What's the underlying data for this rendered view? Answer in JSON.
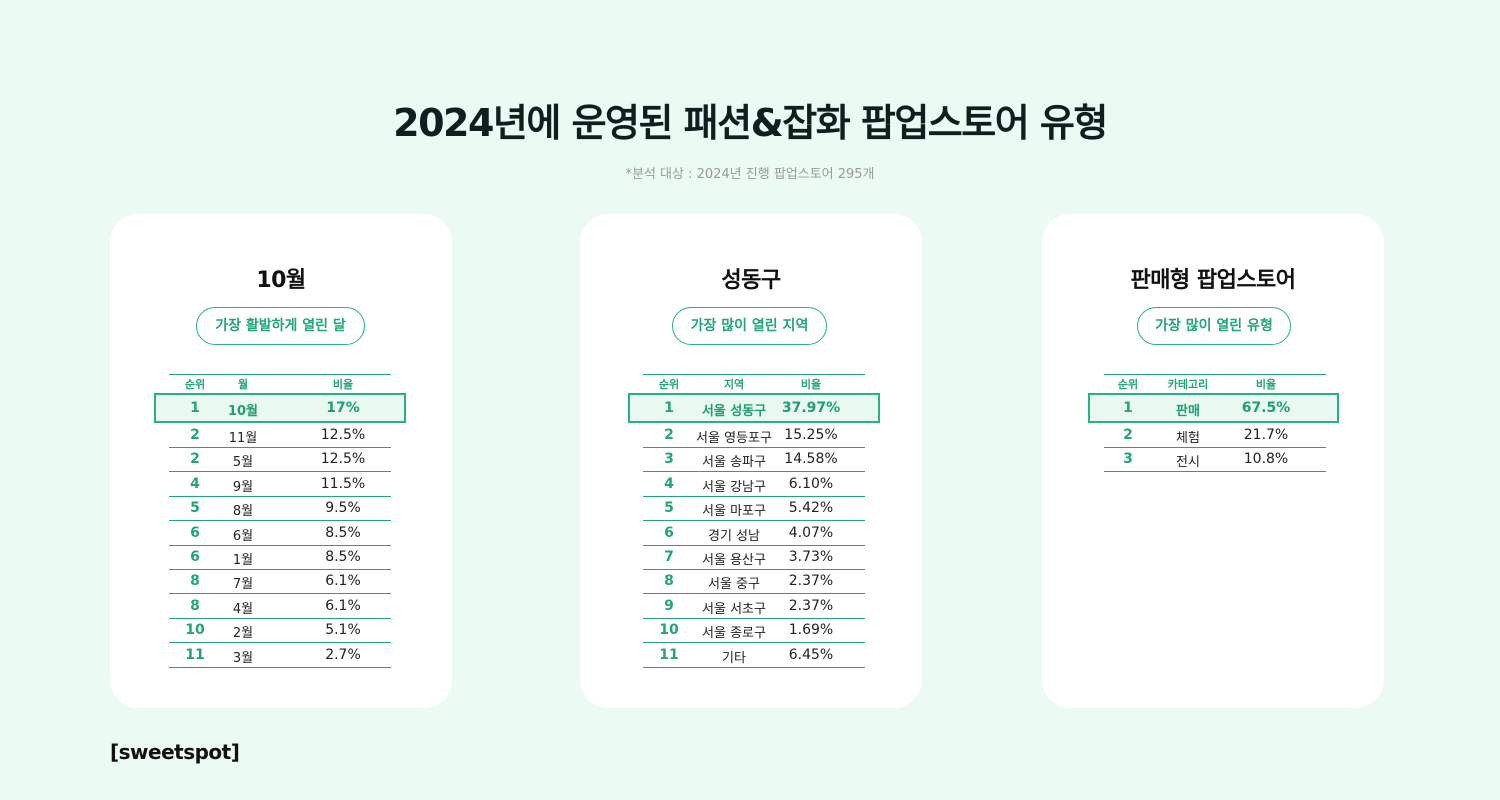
{
  "title": "2024년에 운영된 패션&잡화 팝업스토어 유형",
  "subtitle": "*분석 대상 : 2024년 진행 팝업스토어 295개",
  "logo": "[sweetspot]",
  "cards": [
    {
      "title": "10월",
      "pill": "가장 활발하게 열린 달",
      "headers": [
        "순위",
        "월",
        "비율"
      ],
      "highlight": {
        "rank": "1",
        "name": "10월",
        "value": "17%"
      },
      "rows": [
        {
          "rank": "2",
          "name": "11월",
          "value": "12.5%"
        },
        {
          "rank": "2",
          "name": "5월",
          "value": "12.5%"
        },
        {
          "rank": "4",
          "name": "9월",
          "value": "11.5%"
        },
        {
          "rank": "5",
          "name": "8월",
          "value": "9.5%"
        },
        {
          "rank": "6",
          "name": "6월",
          "value": "8.5%"
        },
        {
          "rank": "6",
          "name": "1월",
          "value": "8.5%"
        },
        {
          "rank": "8",
          "name": "7월",
          "value": "6.1%"
        },
        {
          "rank": "8",
          "name": "4월",
          "value": "6.1%"
        },
        {
          "rank": "10",
          "name": "2월",
          "value": "5.1%"
        },
        {
          "rank": "11",
          "name": "3월",
          "value": "2.7%"
        }
      ]
    },
    {
      "title": "성동구",
      "pill": "가장 많이 열린 지역",
      "headers": [
        "순위",
        "지역",
        "비율"
      ],
      "highlight": {
        "rank": "1",
        "name": "서울 성동구",
        "value": "37.97%"
      },
      "rows": [
        {
          "rank": "2",
          "name": "서울 영등포구",
          "value": "15.25%"
        },
        {
          "rank": "3",
          "name": "서울 송파구",
          "value": "14.58%"
        },
        {
          "rank": "4",
          "name": "서울 강남구",
          "value": "6.10%"
        },
        {
          "rank": "5",
          "name": "서울 마포구",
          "value": "5.42%"
        },
        {
          "rank": "6",
          "name": "경기 성남",
          "value": "4.07%"
        },
        {
          "rank": "7",
          "name": "서울 용산구",
          "value": "3.73%"
        },
        {
          "rank": "8",
          "name": "서울 중구",
          "value": "2.37%"
        },
        {
          "rank": "9",
          "name": "서울 서초구",
          "value": "2.37%"
        },
        {
          "rank": "10",
          "name": "서울 종로구",
          "value": "1.69%"
        },
        {
          "rank": "11",
          "name": "기타",
          "value": "6.45%"
        }
      ]
    },
    {
      "title": "판매형 팝업스토어",
      "pill": "가장 많이 열린 유형",
      "headers": [
        "순위",
        "카테고리",
        "비율"
      ],
      "highlight": {
        "rank": "1",
        "name": "판매",
        "value": "67.5%"
      },
      "rows": [
        {
          "rank": "2",
          "name": "체험",
          "value": "21.7%"
        },
        {
          "rank": "3",
          "name": "전시",
          "value": "10.8%"
        }
      ]
    }
  ]
}
